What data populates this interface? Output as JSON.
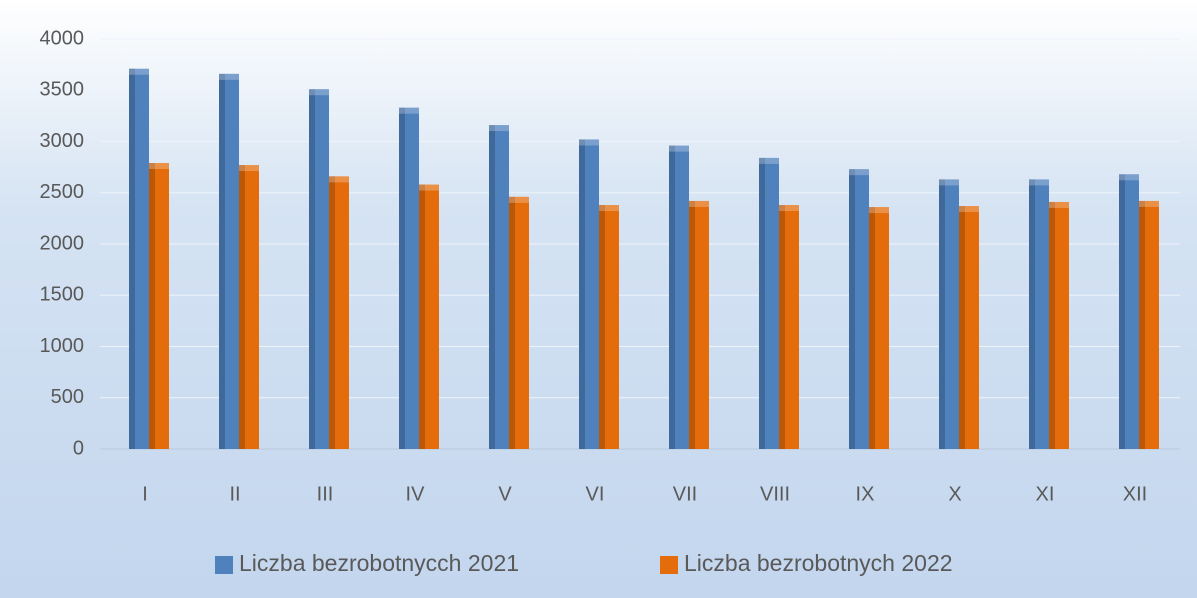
{
  "chart_data": {
    "type": "bar",
    "categories": [
      "I",
      "II",
      "III",
      "IV",
      "V",
      "VI",
      "VII",
      "VIII",
      "IX",
      "X",
      "XI",
      "XII"
    ],
    "series": [
      {
        "name": "Liczba bezrobotnycch 2021",
        "color": "#4f81bd",
        "values": [
          3710,
          3660,
          3510,
          3330,
          3160,
          3020,
          2960,
          2840,
          2730,
          2630,
          2630,
          2680
        ]
      },
      {
        "name": "Liczba bezrobotnych 2022",
        "color": "#e46c0a",
        "values": [
          2790,
          2770,
          2660,
          2580,
          2460,
          2380,
          2420,
          2380,
          2360,
          2370,
          2410,
          2420
        ]
      }
    ],
    "ylim": [
      0,
      4000
    ],
    "yticks": [
      0,
      500,
      1000,
      1500,
      2000,
      2500,
      3000,
      3500,
      4000
    ],
    "grid": true,
    "legend": "bottom"
  }
}
